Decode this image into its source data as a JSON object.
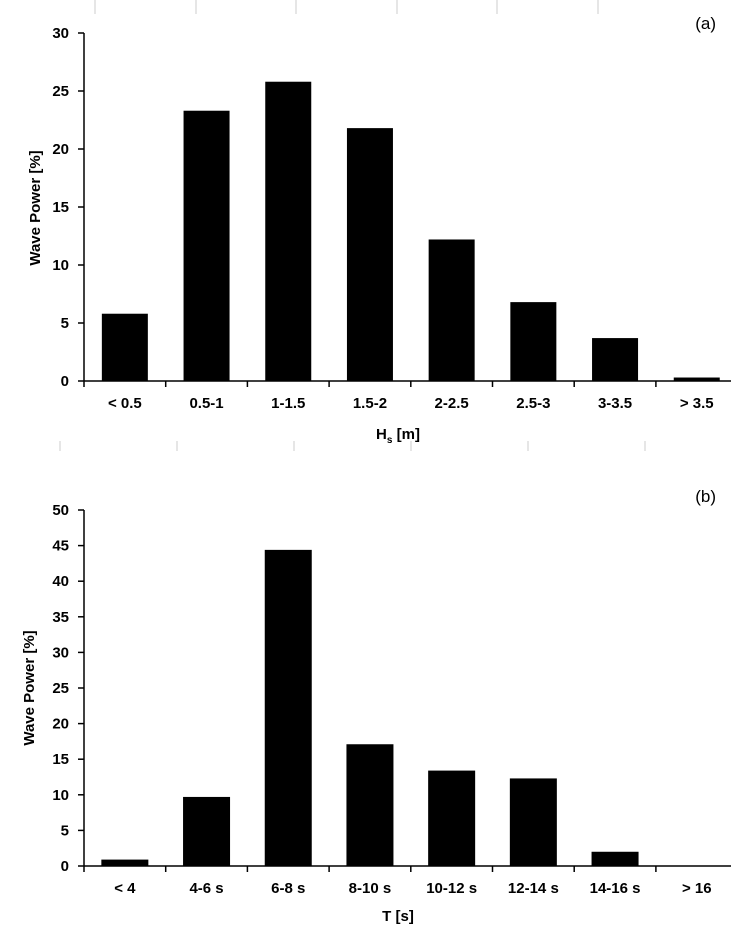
{
  "chart_data": [
    {
      "type": "bar",
      "panel_label": "(a)",
      "categories": [
        "< 0.5",
        "0.5-1",
        "1-1.5",
        "1.5-2",
        "2-2.5",
        "2.5-3",
        "3-3.5",
        "> 3.5"
      ],
      "values": [
        5.8,
        23.3,
        25.8,
        21.8,
        12.2,
        6.8,
        3.7,
        0.3
      ],
      "title": "",
      "xlabel_main": "H",
      "xlabel_sub": "s",
      "xlabel_rest": " [m]",
      "ylabel": "Wave Power [%]",
      "ylim": [
        0,
        30
      ],
      "yticks": [
        "0",
        "5",
        "10",
        "15",
        "20",
        "25",
        "30"
      ],
      "grid": false,
      "bar_color": "#000000"
    },
    {
      "type": "bar",
      "panel_label": "(b)",
      "categories": [
        "< 4",
        "4-6 s",
        "6-8 s",
        "8-10 s",
        "10-12 s",
        "12-14 s",
        "14-16 s",
        "> 16"
      ],
      "values": [
        0.9,
        9.7,
        44.4,
        17.1,
        13.4,
        12.3,
        2.0,
        0
      ],
      "title": "",
      "xlabel": "T [s]",
      "ylabel": "Wave Power [%]",
      "ylim": [
        0,
        50
      ],
      "yticks": [
        "0",
        "5",
        "10",
        "15",
        "20",
        "25",
        "30",
        "35",
        "40",
        "45",
        "50"
      ],
      "grid": false,
      "bar_color": "#000000"
    }
  ]
}
